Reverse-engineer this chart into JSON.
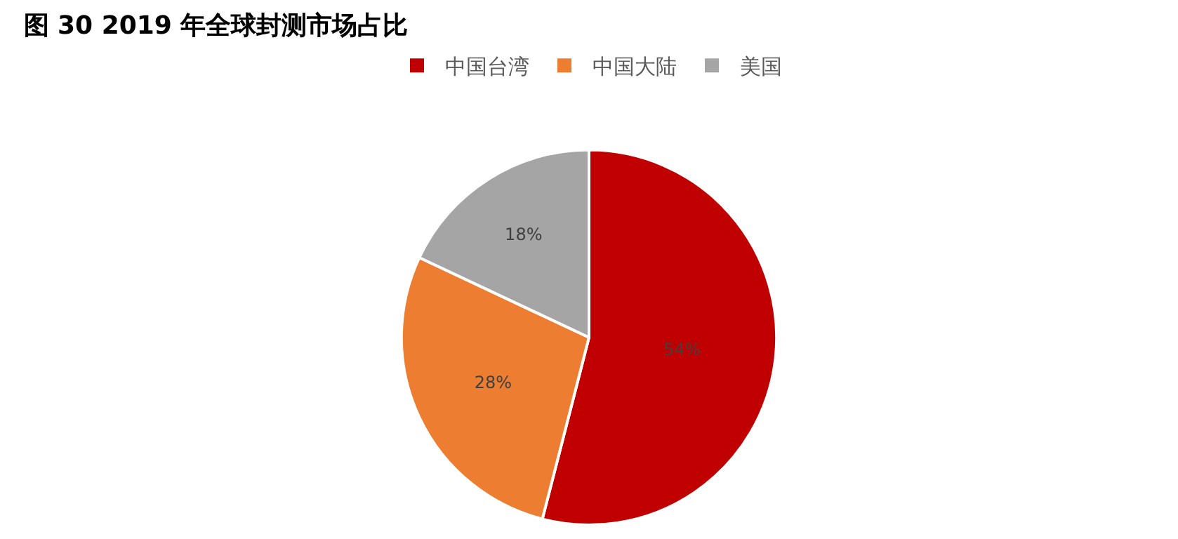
{
  "chart_data": {
    "type": "pie",
    "title": "图 30 2019 年全球封测市场占比",
    "categories": [
      "中国台湾",
      "中国大陆",
      "美国"
    ],
    "values": [
      54,
      28,
      18
    ],
    "colors": [
      "#c00000",
      "#ed7d31",
      "#a5a5a5"
    ],
    "value_labels": [
      "54%",
      "28%",
      "18%"
    ],
    "legend": "top"
  }
}
